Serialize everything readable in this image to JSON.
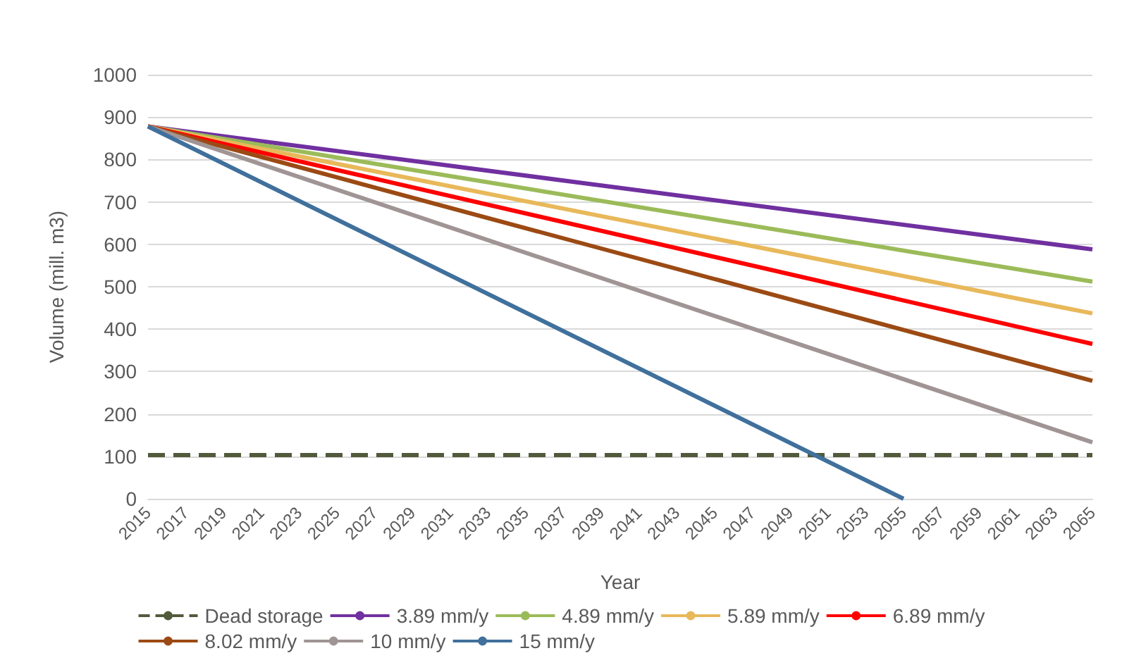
{
  "chart_data": {
    "type": "line",
    "xlabel": "Year",
    "ylabel": "Volume (mill. m3)",
    "xlim": [
      2015,
      2065
    ],
    "xticks": [
      2015,
      2017,
      2019,
      2021,
      2023,
      2025,
      2027,
      2029,
      2031,
      2033,
      2035,
      2037,
      2039,
      2041,
      2043,
      2045,
      2047,
      2049,
      2051,
      2053,
      2055,
      2057,
      2059,
      2061,
      2063,
      2065
    ],
    "ylim": [
      0,
      1000
    ],
    "yticks": [
      0,
      100,
      200,
      300,
      400,
      500,
      600,
      700,
      800,
      900,
      1000
    ],
    "grid": "y",
    "legend": "bottom",
    "marker": "none",
    "series": [
      {
        "name": "Dead storage",
        "color": "#525a3c",
        "line_style": "dashed",
        "x": [
          2015,
          2065
        ],
        "values": [
          103,
          103
        ]
      },
      {
        "name": "3.89 mm/y",
        "color": "#7030a0",
        "x": [
          2015,
          2065
        ],
        "values": [
          878,
          588
        ]
      },
      {
        "name": "4.89 mm/y",
        "color": "#9bbb59",
        "x": [
          2015,
          2065
        ],
        "values": [
          878,
          512
        ]
      },
      {
        "name": "5.89 mm/y",
        "color": "#e8b85a",
        "x": [
          2015,
          2065
        ],
        "values": [
          878,
          437
        ]
      },
      {
        "name": "6.89 mm/y",
        "color": "#ff0000",
        "x": [
          2015,
          2065
        ],
        "values": [
          878,
          365
        ]
      },
      {
        "name": "8.02 mm/y",
        "color": "#9c4a14",
        "x": [
          2015,
          2065
        ],
        "values": [
          878,
          278
        ]
      },
      {
        "name": "10 mm/y",
        "color": "#a09494",
        "x": [
          2015,
          2065
        ],
        "values": [
          878,
          133
        ]
      },
      {
        "name": "15 mm/y",
        "color": "#40709c",
        "x": [
          2015,
          2055
        ],
        "values": [
          878,
          0
        ]
      }
    ]
  }
}
